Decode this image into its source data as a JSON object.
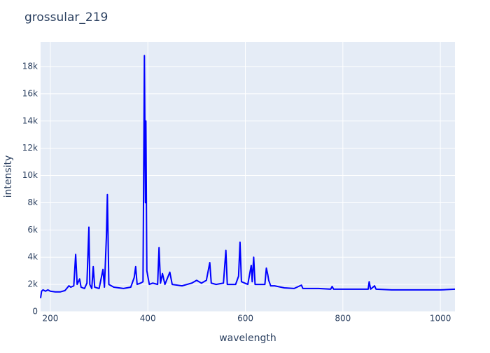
{
  "chart_data": {
    "type": "line",
    "title": "grossular_219",
    "x_label": "wavelength",
    "y_label": "intensity",
    "x": [
      180,
      182,
      185,
      190,
      195,
      200,
      210,
      220,
      230,
      238,
      242,
      248,
      252,
      255,
      260,
      263,
      270,
      275,
      279,
      281,
      285,
      288,
      291,
      300,
      308,
      311,
      315,
      317,
      320,
      330,
      350,
      365,
      372,
      375,
      378,
      385,
      390,
      393,
      395,
      396,
      398,
      403,
      410,
      420,
      423,
      426,
      430,
      435,
      445,
      450,
      470,
      490,
      500,
      510,
      520,
      527,
      530,
      540,
      555,
      560,
      563,
      580,
      586,
      589,
      592,
      605,
      612,
      614,
      617,
      620,
      630,
      640,
      643,
      646,
      648,
      652,
      660,
      680,
      700,
      715,
      718,
      750,
      775,
      778,
      781,
      800,
      852,
      854,
      857,
      865,
      868,
      900,
      1000,
      1030
    ],
    "series": [
      {
        "name": "grossular_219",
        "color": "#0000ff",
        "values": [
          1000,
          1500,
          1600,
          1500,
          1600,
          1500,
          1450,
          1450,
          1550,
          1900,
          1800,
          1900,
          4200,
          2000,
          2400,
          1800,
          1700,
          2100,
          6200,
          2000,
          1700,
          3300,
          1800,
          1700,
          3100,
          1800,
          5500,
          8600,
          2000,
          1800,
          1700,
          1800,
          2500,
          3300,
          2000,
          2100,
          2200,
          18800,
          8000,
          14000,
          3000,
          2000,
          2100,
          2000,
          4700,
          2100,
          2800,
          2000,
          2900,
          2000,
          1900,
          2100,
          2300,
          2100,
          2300,
          3600,
          2100,
          2000,
          2100,
          4500,
          2000,
          2000,
          2600,
          5100,
          2200,
          2000,
          3400,
          2200,
          4000,
          2000,
          2000,
          2000,
          3200,
          2700,
          2300,
          1900,
          1900,
          1750,
          1700,
          1950,
          1700,
          1700,
          1650,
          1850,
          1650,
          1650,
          1650,
          2200,
          1650,
          1900,
          1650,
          1600,
          1600,
          1650
        ]
      }
    ],
    "xlim": [
      180,
      1030
    ],
    "ylim": [
      0,
      19800
    ],
    "xticks": [
      200,
      400,
      600,
      800,
      1000
    ],
    "yticks": [
      0,
      {
        "value": 2000,
        "label": "2k"
      },
      {
        "value": 4000,
        "label": "4k"
      },
      {
        "value": 6000,
        "label": "6k"
      },
      {
        "value": 8000,
        "label": "8k"
      },
      {
        "value": 10000,
        "label": "10k"
      },
      {
        "value": 12000,
        "label": "12k"
      },
      {
        "value": 14000,
        "label": "14k"
      },
      {
        "value": 16000,
        "label": "16k"
      },
      {
        "value": 18000,
        "label": "18k"
      }
    ],
    "grid": true
  }
}
